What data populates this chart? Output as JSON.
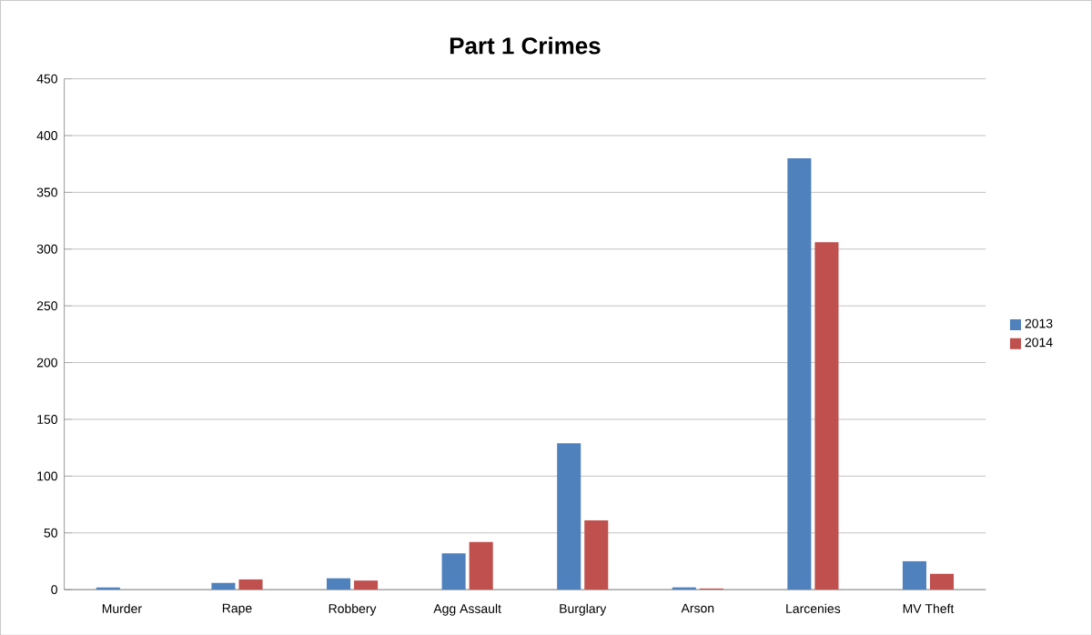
{
  "chart_data": {
    "type": "bar",
    "title": "Part 1 Crimes",
    "categories": [
      "Murder",
      "Rape",
      "Robbery",
      "Agg Assault",
      "Burglary",
      "Arson",
      "Larcenies",
      "MV Theft"
    ],
    "series": [
      {
        "name": "2013",
        "color": "#4f81bd",
        "values": [
          2,
          6,
          10,
          32,
          129,
          2,
          380,
          25
        ]
      },
      {
        "name": "2014",
        "color": "#c0504d",
        "values": [
          0,
          9,
          8,
          42,
          61,
          1,
          306,
          14
        ]
      }
    ],
    "ylim": [
      0,
      450
    ],
    "yticks": [
      0,
      50,
      100,
      150,
      200,
      250,
      300,
      350,
      400,
      450
    ],
    "grid": "y",
    "legend": "right"
  }
}
